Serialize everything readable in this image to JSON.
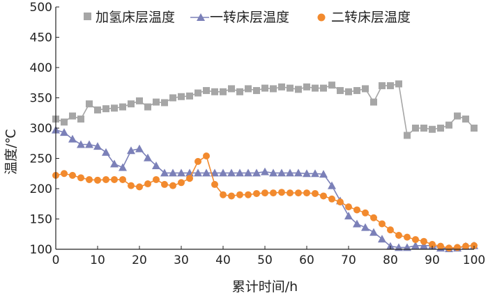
{
  "chart_data": {
    "type": "line",
    "title": "",
    "xlabel": "累计时间/h",
    "ylabel": "温度/℃",
    "xlim": [
      0,
      100
    ],
    "ylim": [
      100,
      500
    ],
    "x_ticks": [
      "0",
      "10",
      "20",
      "30",
      "40",
      "50",
      "60",
      "70",
      "80",
      "90",
      "100"
    ],
    "y_ticks": [
      "100",
      "150",
      "200",
      "250",
      "300",
      "350",
      "400",
      "450",
      "500"
    ],
    "grid": false,
    "legend_position": "top",
    "series": [
      {
        "name": "加氢床层温度",
        "color": "#a6a6a6",
        "marker": "square",
        "x": [
          0,
          2,
          4,
          6,
          8,
          10,
          12,
          14,
          16,
          18,
          20,
          22,
          24,
          26,
          28,
          30,
          32,
          34,
          36,
          38,
          40,
          42,
          44,
          46,
          48,
          50,
          52,
          54,
          56,
          58,
          60,
          62,
          64,
          66,
          68,
          70,
          72,
          74,
          76,
          78,
          80,
          82,
          84,
          86,
          88,
          90,
          92,
          94,
          96,
          98,
          100
        ],
        "y": [
          315,
          310,
          320,
          315,
          340,
          330,
          332,
          333,
          335,
          340,
          345,
          335,
          343,
          342,
          350,
          352,
          353,
          358,
          362,
          360,
          360,
          365,
          360,
          365,
          362,
          366,
          365,
          368,
          366,
          364,
          368,
          366,
          366,
          371,
          362,
          360,
          362,
          365,
          343,
          370,
          370,
          373,
          288,
          300,
          300,
          298,
          300,
          305,
          320,
          315,
          300
        ]
      },
      {
        "name": "一转床层温度",
        "color": "#7b80b8",
        "marker": "triangle",
        "x": [
          0,
          2,
          4,
          6,
          8,
          10,
          12,
          14,
          16,
          18,
          20,
          22,
          24,
          26,
          28,
          30,
          32,
          34,
          36,
          38,
          40,
          42,
          44,
          46,
          48,
          50,
          52,
          54,
          56,
          58,
          60,
          62,
          64,
          66,
          68,
          70,
          72,
          74,
          76,
          78,
          80,
          82,
          84,
          86,
          88,
          90,
          92,
          94,
          96,
          98,
          100
        ],
        "y": [
          297,
          293,
          282,
          273,
          273,
          270,
          260,
          241,
          235,
          263,
          266,
          251,
          238,
          226,
          226,
          226,
          226,
          226,
          226,
          226,
          226,
          226,
          226,
          226,
          226,
          228,
          226,
          226,
          226,
          226,
          225,
          225,
          224,
          205,
          180,
          155,
          142,
          136,
          128,
          117,
          105,
          103,
          103,
          106,
          106,
          106,
          102,
          101,
          102,
          105,
          106
        ]
      },
      {
        "name": "二转床层温度",
        "color": "#f28a2e",
        "marker": "circle",
        "x": [
          0,
          2,
          4,
          6,
          8,
          10,
          12,
          14,
          16,
          18,
          20,
          22,
          24,
          26,
          28,
          30,
          32,
          34,
          36,
          38,
          40,
          42,
          44,
          46,
          48,
          50,
          52,
          54,
          56,
          58,
          60,
          62,
          64,
          66,
          68,
          70,
          72,
          74,
          76,
          78,
          80,
          82,
          84,
          86,
          88,
          90,
          92,
          94,
          96,
          98,
          100
        ],
        "y": [
          222,
          225,
          222,
          218,
          215,
          214,
          215,
          215,
          215,
          205,
          203,
          208,
          215,
          207,
          205,
          210,
          217,
          245,
          254,
          207,
          190,
          188,
          190,
          190,
          192,
          193,
          193,
          194,
          193,
          193,
          193,
          192,
          188,
          183,
          178,
          170,
          165,
          160,
          152,
          142,
          132,
          123,
          120,
          116,
          113,
          108,
          105,
          102,
          103,
          105,
          106
        ]
      }
    ]
  }
}
